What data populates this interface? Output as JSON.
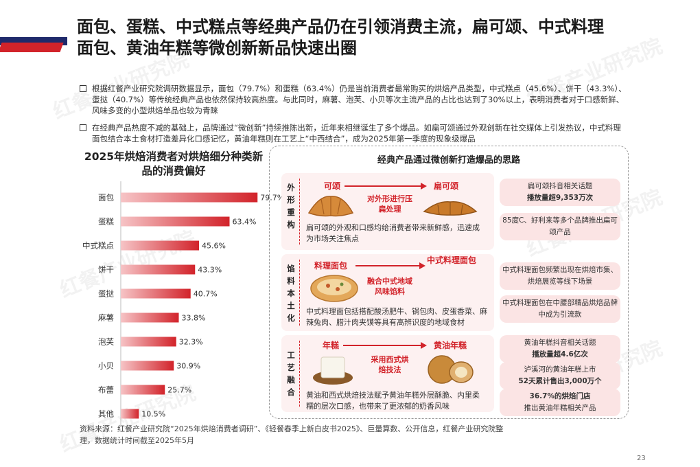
{
  "title": "面包、蛋糕、中式糕点等经典产品仍在引领消费主流，扁可颂、中式料理面包、黄油年糕等微创新新品快速出圈",
  "watermark": "红餐产业研究院",
  "bullets": [
    "根据红餐产业研究院调研数据显示，面包（79.7%）和蛋糕（63.4%）仍是当前消费者最常购买的烘焙产品类型，中式糕点（45.6%）、饼干（43.3%）、蛋挞（40.7%）等传统经典产品也依然保持较高热度。与此同时，麻薯、泡芙、小贝等次主流产品的占比也达到了30%以上，表明消费者对于口感新鲜、风味多变的小型烘焙单品也较为青睐",
    "在经典产品热度不减的基础上，品牌通过“微创新”持续推陈出新，近年来相继诞生了多个爆品。如扁可颂通过外观创新在社交媒体上引发热议，中式料理面包结合本土食材打造差异化口感记忆，黄油年糕则在工艺上“中西结合”，成为2025年第一季度的现象级爆品"
  ],
  "chart_data": {
    "type": "bar",
    "orientation": "horizontal",
    "title": "2025年烘焙消费者对烘焙细分种类新品的消费偏好",
    "categories": [
      "面包",
      "蛋糕",
      "中式糕点",
      "饼干",
      "蛋挞",
      "麻薯",
      "泡芙",
      "小贝",
      "布蕾",
      "其他"
    ],
    "values": [
      79.7,
      63.4,
      45.6,
      43.3,
      40.7,
      33.8,
      32.3,
      30.9,
      25.7,
      10.5
    ],
    "value_labels": [
      "79.7%",
      "63.4%",
      "45.6%",
      "43.3%",
      "40.7%",
      "33.8%",
      "32.3%",
      "30.9%",
      "25.7%",
      "10.5%"
    ],
    "xlim": [
      0,
      100
    ],
    "bar_color_start": "#f6c4c6",
    "bar_color_end": "#d2232a",
    "legend": "none",
    "grid": false
  },
  "panel": {
    "title": "经典产品通过微创新打造爆品的思路",
    "rows": [
      {
        "label": "外形重构",
        "from": "可颂",
        "to": "扁可颂",
        "method": "对外形进行压扁处理",
        "desc": "扁可颂的外观和口感均给消费者带来新鲜感，迅速成为市场关注焦点",
        "facts": [
          {
            "text": "扁可颂抖音相关话题",
            "bold": "播放量超9,353万次"
          },
          {
            "text": "85度C、好利来等多个品牌推出扁可颂产品",
            "bold": ""
          }
        ]
      },
      {
        "label": "馅料本土化",
        "from": "料理面包",
        "to": "中式料理面包",
        "method": "融合中式地域风味馅料",
        "desc": "中式料理面包括搭配酸汤肥牛、锅包肉、皮蛋香菜、麻辣兔肉、腊汁肉夹馍等具有高辨识度的地域食材",
        "facts": [
          {
            "text": "中式料理面包频繁出现在烘焙市集、烘焙展览等线下场景",
            "bold": ""
          },
          {
            "text": "中式料理面包在中腰部精品烘焙品牌中成为引流款",
            "bold": ""
          }
        ]
      },
      {
        "label": "工艺融合",
        "from": "年糕",
        "to": "黄油年糕",
        "method": "采用西式烘焙技法",
        "desc": "黄油和西式烘焙技法赋予黄油年糕外层酥脆、内里柔糯的层次口感，也带来了更浓郁的奶香风味",
        "facts": [
          {
            "text": "黄油年糕抖音相关话题",
            "bold": "播放量超4.6亿次"
          },
          {
            "text": "泸溪河的黄油年糕上市",
            "bold": "52天累计售出3,000万个"
          },
          {
            "text": "推出黄油年糕相关产品",
            "bold": "36.7%的烘焙门店"
          }
        ]
      }
    ]
  },
  "source": "资料来源：红餐产业研究院“2025年烘焙消费者调研”、《轻餐春季上新白皮书2025》、巨量算数、公开信息，红餐产业研究院整理，数据统计时间截至2025年5月",
  "page_number": "23",
  "colors": {
    "accent": "#d2232a",
    "navy": "#1f2a6b",
    "pill": "#fbe4e4",
    "row_bg": "#fdf1f1"
  }
}
